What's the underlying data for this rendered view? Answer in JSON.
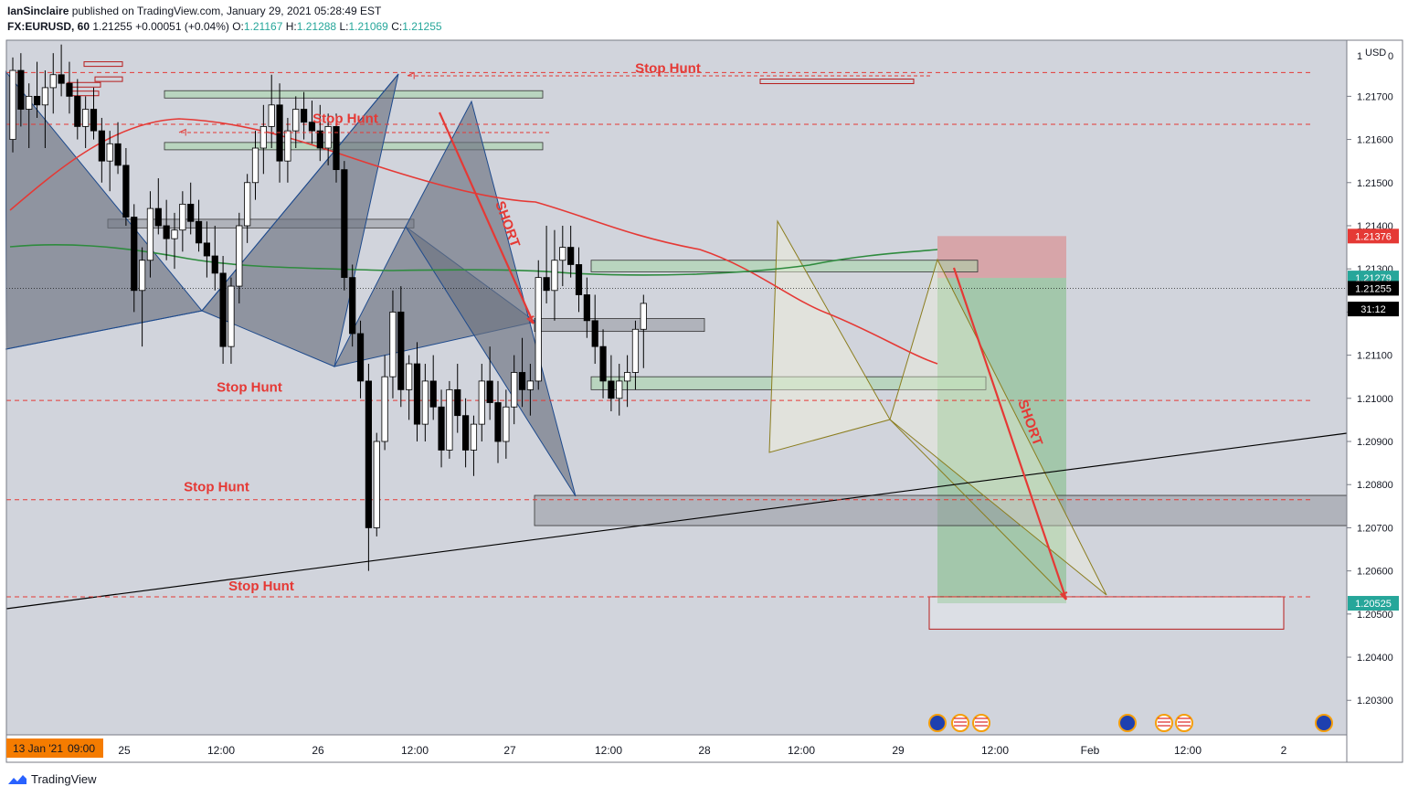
{
  "header": {
    "author": "IanSinclaire",
    "published_text": "published on TradingView.com, January 29, 2021 05:28:49 EST",
    "symbol": "FX:EURUSD, 60",
    "last": "1.21255",
    "change": "+0.00051 (+0.04%)",
    "o_label": "O:",
    "o": "1.21167",
    "h_label": "H:",
    "h": "1.21288",
    "l_label": "L:",
    "l": "1.21069",
    "c_label": "C:",
    "c": "1.21255"
  },
  "footer": {
    "brand": "TradingView"
  },
  "colors": {
    "background": "#d1d4dc",
    "bull": "#ffffff",
    "bear": "#000000",
    "ema_red": "#e53935",
    "ema_green": "#2e8b3e",
    "annotation_red": "#e53935",
    "zone_green": "#a5d6a7",
    "zone_grey": "#9598a1",
    "target_bg": "#26a69a",
    "stop_bg": "#e53935"
  },
  "chart_data": {
    "type": "candlestick",
    "symbol": "FX:EURUSD",
    "timeframe": "60",
    "currency": "USD",
    "ylim": [
      1.2022,
      1.2183
    ],
    "y_ticks": [
      "1.21700",
      "1.21600",
      "1.21500",
      "1.21400",
      "1.21300",
      "1.21200",
      "1.21100",
      "1.21000",
      "1.20900",
      "1.20800",
      "1.20700",
      "1.20600",
      "1.20500",
      "1.20400",
      "1.20300"
    ],
    "top_tick": "1",
    "top_right_tick": "0",
    "usd_label": "USD",
    "x_ticks": [
      "25",
      "12:00",
      "26",
      "12:00",
      "27",
      "12:00",
      "28",
      "12:00",
      "29",
      "12:00",
      "Feb",
      "12:00",
      "2"
    ],
    "x_range_label": "13 Jan '21",
    "x_range_time": "09:00",
    "price_badges": [
      {
        "label": "1.21376",
        "value": 1.21376,
        "color": "#e53935"
      },
      {
        "label": "1.21279",
        "value": 1.21279,
        "color": "#26a69a"
      },
      {
        "label": "1.21255",
        "value": 1.21255,
        "color": "#000000"
      },
      {
        "label": "31:12",
        "value": 1.21207,
        "color": "#000000"
      },
      {
        "label": "1.20525",
        "value": 1.20525,
        "color": "#26a69a"
      }
    ],
    "position": {
      "side": "short",
      "entry": 1.21279,
      "stop": 1.21376,
      "target": 1.20525
    },
    "annotations": [
      {
        "text": "Stop Hunt",
        "price": 1.21755
      },
      {
        "text": "Stop Hunt",
        "price": 1.21638
      },
      {
        "text": "Stop Hunt",
        "price": 1.21015
      },
      {
        "text": "Stop Hunt",
        "price": 1.20785
      },
      {
        "text": "Stop Hunt",
        "price": 1.20555
      },
      {
        "text": "SHORT",
        "price": 1.214
      },
      {
        "text": "SHORT",
        "price": 1.2094
      }
    ],
    "stop_hunt_levels": [
      1.21755,
      1.21635,
      1.20995,
      1.20765,
      1.2054
    ],
    "candles": [
      [
        1.216,
        1.2179,
        1.2157,
        1.2176
      ],
      [
        1.2176,
        1.218,
        1.2163,
        1.2167
      ],
      [
        1.2167,
        1.2173,
        1.2158,
        1.217
      ],
      [
        1.217,
        1.2178,
        1.2165,
        1.2168
      ],
      [
        1.2168,
        1.2176,
        1.2158,
        1.2172
      ],
      [
        1.2172,
        1.218,
        1.2166,
        1.2175
      ],
      [
        1.2175,
        1.2182,
        1.217,
        1.2173
      ],
      [
        1.2173,
        1.2178,
        1.2166,
        1.217
      ],
      [
        1.217,
        1.2174,
        1.216,
        1.2163
      ],
      [
        1.2163,
        1.217,
        1.2158,
        1.2167
      ],
      [
        1.2167,
        1.2172,
        1.216,
        1.2162
      ],
      [
        1.2162,
        1.2165,
        1.215,
        1.2155
      ],
      [
        1.2155,
        1.2162,
        1.2148,
        1.2159
      ],
      [
        1.2159,
        1.2164,
        1.2152,
        1.2154
      ],
      [
        1.2154,
        1.2158,
        1.214,
        1.2142
      ],
      [
        1.2142,
        1.2145,
        1.212,
        1.2125
      ],
      [
        1.2125,
        1.2135,
        1.2112,
        1.2132
      ],
      [
        1.2132,
        1.2148,
        1.2128,
        1.2144
      ],
      [
        1.2144,
        1.2151,
        1.2138,
        1.214
      ],
      [
        1.214,
        1.2146,
        1.2132,
        1.2137
      ],
      [
        1.2137,
        1.2143,
        1.213,
        1.2139
      ],
      [
        1.2139,
        1.2148,
        1.2134,
        1.2145
      ],
      [
        1.2145,
        1.215,
        1.2138,
        1.2141
      ],
      [
        1.2141,
        1.2146,
        1.2134,
        1.2136
      ],
      [
        1.2136,
        1.2141,
        1.2128,
        1.2133
      ],
      [
        1.2133,
        1.214,
        1.2125,
        1.2129
      ],
      [
        1.2129,
        1.2133,
        1.2108,
        1.2112
      ],
      [
        1.2112,
        1.2128,
        1.2108,
        1.2126
      ],
      [
        1.2126,
        1.2143,
        1.2122,
        1.214
      ],
      [
        1.214,
        1.2152,
        1.2136,
        1.215
      ],
      [
        1.215,
        1.2162,
        1.2146,
        1.2158
      ],
      [
        1.2158,
        1.2168,
        1.2152,
        1.2163
      ],
      [
        1.2163,
        1.2175,
        1.2158,
        1.2168
      ],
      [
        1.2168,
        1.2173,
        1.215,
        1.2155
      ],
      [
        1.2155,
        1.2165,
        1.215,
        1.2162
      ],
      [
        1.2162,
        1.217,
        1.2158,
        1.2167
      ],
      [
        1.2167,
        1.2171,
        1.216,
        1.2164
      ],
      [
        1.2164,
        1.2169,
        1.2159,
        1.2162
      ],
      [
        1.2162,
        1.2168,
        1.2155,
        1.2158
      ],
      [
        1.2158,
        1.2166,
        1.2154,
        1.2163
      ],
      [
        1.2163,
        1.2166,
        1.215,
        1.2153
      ],
      [
        1.2153,
        1.2155,
        1.2125,
        1.2128
      ],
      [
        1.2128,
        1.2131,
        1.2112,
        1.2115
      ],
      [
        1.2115,
        1.2118,
        1.21,
        1.2104
      ],
      [
        1.2104,
        1.2108,
        1.206,
        1.207
      ],
      [
        1.207,
        1.2092,
        1.2068,
        1.209
      ],
      [
        1.209,
        1.211,
        1.2088,
        1.2105
      ],
      [
        1.2105,
        1.2125,
        1.21,
        1.212
      ],
      [
        1.212,
        1.2126,
        1.2098,
        1.2102
      ],
      [
        1.2102,
        1.211,
        1.2095,
        1.2108
      ],
      [
        1.2108,
        1.2113,
        1.209,
        1.2094
      ],
      [
        1.2094,
        1.2108,
        1.209,
        1.2104
      ],
      [
        1.2104,
        1.211,
        1.2095,
        1.2098
      ],
      [
        1.2098,
        1.2102,
        1.2084,
        1.2088
      ],
      [
        1.2088,
        1.2104,
        1.2086,
        1.2102
      ],
      [
        1.2102,
        1.2108,
        1.2092,
        1.2096
      ],
      [
        1.2096,
        1.21,
        1.2084,
        1.2088
      ],
      [
        1.2088,
        1.2096,
        1.2082,
        1.2094
      ],
      [
        1.2094,
        1.2108,
        1.209,
        1.2104
      ],
      [
        1.2104,
        1.2112,
        1.2095,
        1.2099
      ],
      [
        1.2099,
        1.2104,
        1.2085,
        1.209
      ],
      [
        1.209,
        1.2102,
        1.2086,
        1.2098
      ],
      [
        1.2098,
        1.211,
        1.2094,
        1.2106
      ],
      [
        1.2106,
        1.2114,
        1.2098,
        1.2102
      ],
      [
        1.2102,
        1.2108,
        1.2096,
        1.2104
      ],
      [
        1.2104,
        1.2132,
        1.2102,
        1.2128
      ],
      [
        1.2128,
        1.214,
        1.2122,
        1.2125
      ],
      [
        1.2125,
        1.2139,
        1.2118,
        1.2132
      ],
      [
        1.2132,
        1.214,
        1.2126,
        1.2135
      ],
      [
        1.2135,
        1.214,
        1.2128,
        1.2131
      ],
      [
        1.2131,
        1.2135,
        1.212,
        1.2124
      ],
      [
        1.2124,
        1.2128,
        1.2114,
        1.2118
      ],
      [
        1.2118,
        1.2124,
        1.2108,
        1.2112
      ],
      [
        1.2112,
        1.2116,
        1.21,
        1.2104
      ],
      [
        1.2104,
        1.211,
        1.2097,
        1.21
      ],
      [
        1.21,
        1.2108,
        1.2096,
        1.2104
      ],
      [
        1.2104,
        1.211,
        1.2098,
        1.2106
      ],
      [
        1.2106,
        1.2118,
        1.2102,
        1.2116
      ],
      [
        1.2116,
        1.2124,
        1.2107,
        1.2122
      ]
    ]
  }
}
